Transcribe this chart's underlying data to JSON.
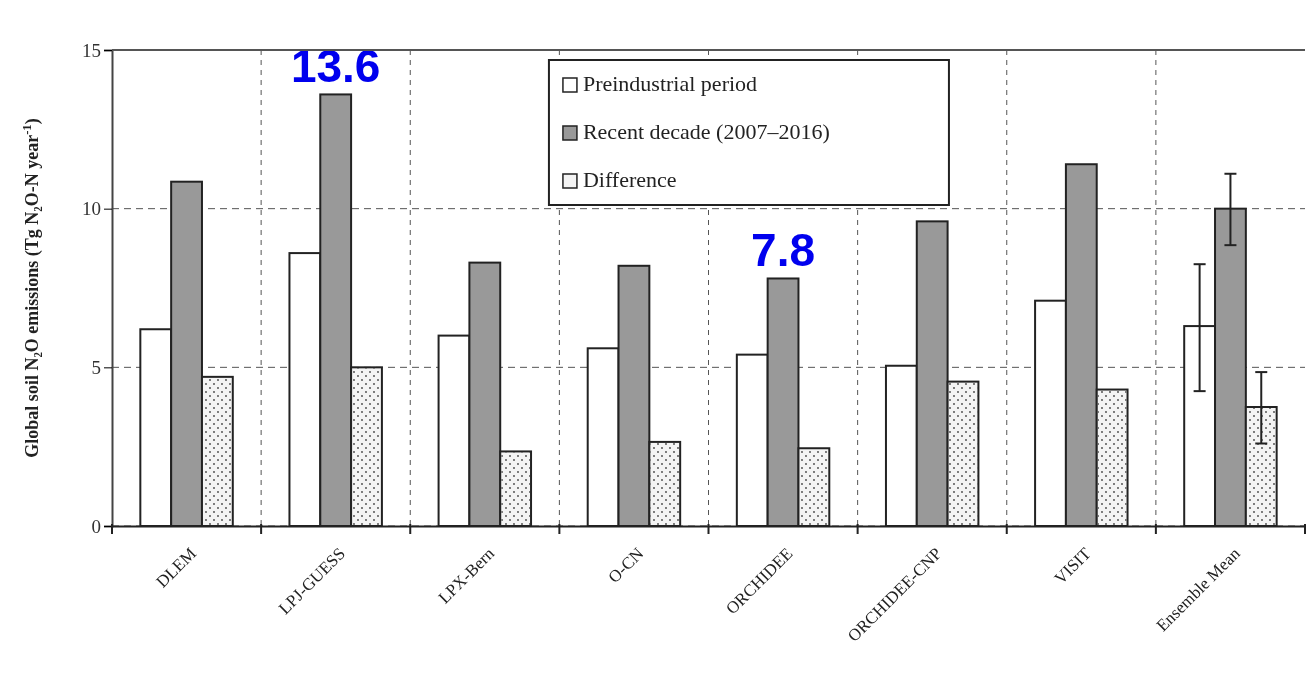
{
  "chart_data": {
    "type": "bar",
    "ylabel": "Global soil N₂O emissions (Tg N₂O-N year$^{-1}$)",
    "categories": [
      "DLEM",
      "LPJ-GUESS",
      "LPX-Bern",
      "O-CN",
      "ORCHIDEE",
      "ORCHIDEE-CNP",
      "VISIT",
      "Ensemble Mean"
    ],
    "series": [
      {
        "name": "Preindustrial period",
        "color": "#ffffff",
        "values": [
          6.2,
          8.6,
          6.0,
          5.6,
          5.4,
          5.05,
          7.1,
          6.3
        ],
        "errors": [
          null,
          null,
          null,
          null,
          null,
          null,
          null,
          [
            4.25,
            8.25
          ]
        ]
      },
      {
        "name": "Recent decade (2007–2016)",
        "color": "#999999",
        "values": [
          10.85,
          13.6,
          8.3,
          8.2,
          7.8,
          9.6,
          11.4,
          10.0
        ],
        "errors": [
          null,
          null,
          null,
          null,
          null,
          null,
          null,
          [
            8.85,
            11.1
          ]
        ],
        "value_labels": [
          null,
          "13.6",
          null,
          null,
          "7.8",
          null,
          null,
          null
        ]
      },
      {
        "name": "Difference",
        "color": "#f4f4f4",
        "values": [
          4.7,
          5.0,
          2.35,
          2.65,
          2.45,
          4.55,
          4.3,
          3.75
        ],
        "errors": [
          null,
          null,
          null,
          null,
          null,
          null,
          null,
          [
            2.6,
            4.85
          ]
        ]
      }
    ],
    "ylim": [
      0,
      15
    ],
    "yticks": [
      0,
      5,
      10,
      15
    ],
    "grid": true,
    "legend": "top"
  }
}
